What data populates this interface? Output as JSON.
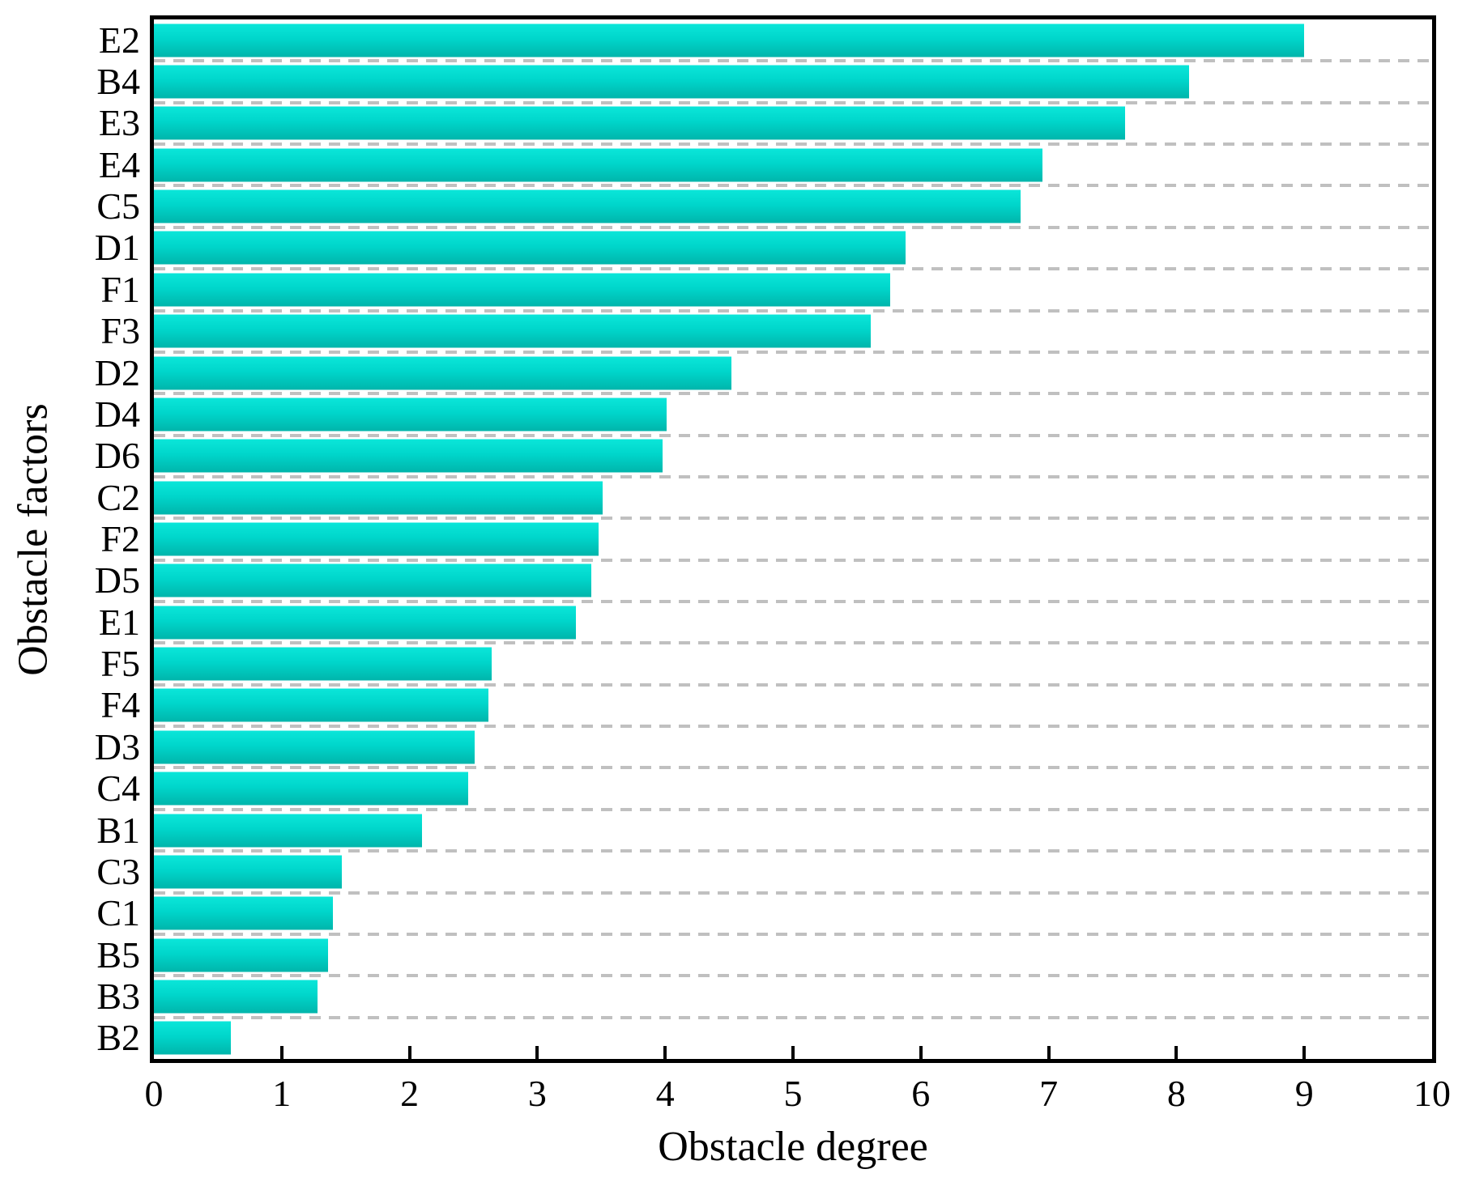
{
  "chart_data": {
    "type": "bar",
    "orientation": "horizontal",
    "title": "",
    "xlabel": "Obstacle degree",
    "ylabel": "Obstacle factors",
    "categories": [
      "E2",
      "B4",
      "E3",
      "E4",
      "C5",
      "D1",
      "F1",
      "F3",
      "D2",
      "D4",
      "D6",
      "C2",
      "F2",
      "D5",
      "E1",
      "F5",
      "F4",
      "D3",
      "C4",
      "B1",
      "C3",
      "C1",
      "B5",
      "B3",
      "B2"
    ],
    "values": [
      9.0,
      8.1,
      7.6,
      6.95,
      6.78,
      5.88,
      5.76,
      5.61,
      4.52,
      4.01,
      3.98,
      3.51,
      3.48,
      3.42,
      3.3,
      2.64,
      2.62,
      2.51,
      2.46,
      2.1,
      1.47,
      1.4,
      1.36,
      1.28,
      0.6
    ],
    "xlim": [
      0,
      10
    ],
    "x_ticks": [
      0,
      1,
      2,
      3,
      4,
      5,
      6,
      7,
      8,
      9,
      10
    ],
    "grid": "horizontal-dashed",
    "legend_position": "none"
  },
  "colors": {
    "bar_gradient_top": "#0be6d9",
    "bar_gradient_mid": "#00d6cb",
    "bar_gradient_bottom": "#00b5ab",
    "gridline": "#c0c0c0",
    "axis": "#000000",
    "text": "#000000",
    "background": "#ffffff"
  }
}
